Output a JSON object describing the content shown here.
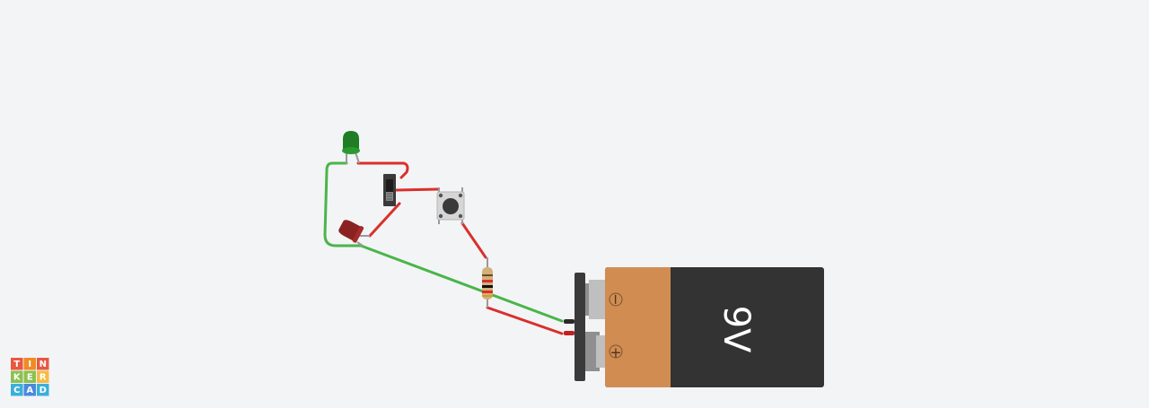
{
  "colors": {
    "background": "#f3f4f6",
    "wire_red": "#d9302c",
    "wire_green": "#4ab54a",
    "led_green": "#1f7d24",
    "led_red": "#8a2222",
    "battery_orange": "#d18c52",
    "battery_body": "#333333",
    "terminal_gray": "#bfbfbf"
  },
  "battery": {
    "label": "9V",
    "minus_symbol": "−",
    "plus_symbol": "+"
  },
  "logo": {
    "letters": [
      "T",
      "I",
      "N",
      "K",
      "E",
      "R",
      "C",
      "A",
      "D"
    ],
    "tile_colors": [
      "#e9573f",
      "#f08a24",
      "#e9573f",
      "#8cc152",
      "#8cc152",
      "#f6bb42",
      "#3bafda",
      "#4a89dc",
      "#3bafda"
    ]
  },
  "components": [
    "green-led",
    "red-led",
    "slide-switch",
    "pushbutton",
    "resistor",
    "battery-9v"
  ]
}
